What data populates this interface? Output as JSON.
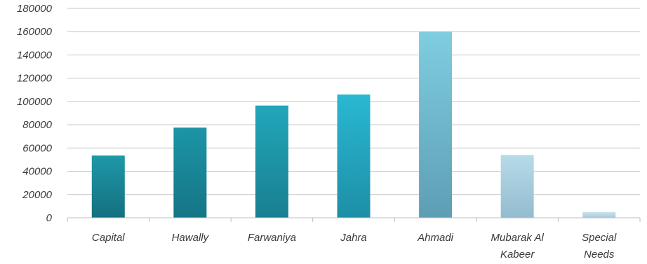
{
  "chart_data": {
    "type": "bar",
    "title": "",
    "xlabel": "",
    "ylabel": "",
    "categories": [
      [
        "Capital"
      ],
      [
        "Hawally"
      ],
      [
        "Farwaniya"
      ],
      [
        "Jahra"
      ],
      [
        "Ahmadi"
      ],
      [
        "Mubarak Al",
        "Kabeer"
      ],
      [
        "Special",
        "Needs"
      ]
    ],
    "values": [
      53500,
      77500,
      96500,
      106000,
      160000,
      54000,
      5000
    ],
    "ylim": [
      0,
      180000
    ],
    "ytick_step": 20000,
    "yticks": [
      "0",
      "20000",
      "40000",
      "60000",
      "80000",
      "100000",
      "120000",
      "140000",
      "160000",
      "180000"
    ],
    "grid": true,
    "legend": "none",
    "bar_colors": [
      [
        "#1e98a8",
        "#147080"
      ],
      [
        "#1c95a7",
        "#157585"
      ],
      [
        "#22a7bb",
        "#187f90"
      ],
      [
        "#2ab8d2",
        "#1d8fa6"
      ],
      [
        "#7fcde0",
        "#5e9eb5"
      ],
      [
        "#b7dbe8",
        "#93bccf"
      ],
      [
        "#c9e2ee",
        "#a8c9da"
      ]
    ]
  }
}
